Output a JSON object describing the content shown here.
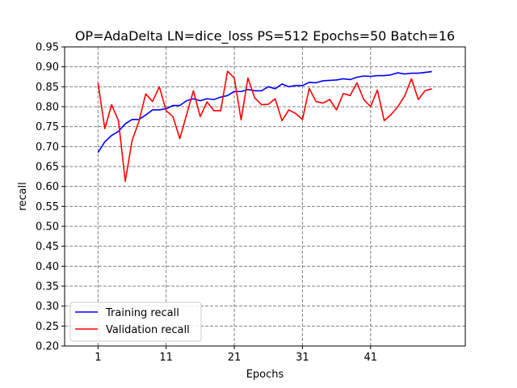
{
  "chart_data": {
    "type": "line",
    "title": "OP=AdaDelta LN=dice_loss PS=512 Epochs=50 Batch=16",
    "xlabel": "Epochs",
    "ylabel": "recall",
    "xlim": [
      -3.9,
      54.9
    ],
    "ylim": [
      0.2,
      0.95
    ],
    "xticks": [
      1,
      11,
      21,
      31,
      41
    ],
    "xtick_labels": [
      "1",
      "11",
      "21",
      "31",
      "41"
    ],
    "yticks": [
      0.2,
      0.25,
      0.3,
      0.35,
      0.4,
      0.45,
      0.5,
      0.55,
      0.6,
      0.65,
      0.7,
      0.75,
      0.8,
      0.85,
      0.9,
      0.95
    ],
    "ytick_labels": [
      "0.20",
      "0.25",
      "0.30",
      "0.35",
      "0.40",
      "0.45",
      "0.50",
      "0.55",
      "0.60",
      "0.65",
      "0.70",
      "0.75",
      "0.80",
      "0.85",
      "0.90",
      "0.95"
    ],
    "grid": true,
    "legend_position": "lower-left",
    "x": [
      1,
      2,
      3,
      4,
      5,
      6,
      7,
      8,
      9,
      10,
      11,
      12,
      13,
      14,
      15,
      16,
      17,
      18,
      19,
      20,
      21,
      22,
      23,
      24,
      25,
      26,
      27,
      28,
      29,
      30,
      31,
      32,
      33,
      34,
      35,
      36,
      37,
      38,
      39,
      40,
      41,
      42,
      43,
      44,
      45,
      46,
      47,
      48,
      49,
      50
    ],
    "series": [
      {
        "name": "Training recall",
        "color": "#0000ff",
        "values": [
          0.685,
          0.712,
          0.728,
          0.738,
          0.757,
          0.768,
          0.768,
          0.779,
          0.792,
          0.792,
          0.795,
          0.803,
          0.803,
          0.815,
          0.82,
          0.815,
          0.82,
          0.818,
          0.824,
          0.828,
          0.838,
          0.838,
          0.843,
          0.84,
          0.84,
          0.85,
          0.845,
          0.857,
          0.85,
          0.853,
          0.853,
          0.861,
          0.86,
          0.865,
          0.866,
          0.867,
          0.87,
          0.868,
          0.874,
          0.877,
          0.876,
          0.878,
          0.878,
          0.88,
          0.885,
          0.882,
          0.884,
          0.884,
          0.886,
          0.888
        ]
      },
      {
        "name": "Validation recall",
        "color": "#ff0000",
        "values": [
          0.86,
          0.745,
          0.805,
          0.765,
          0.613,
          0.715,
          0.763,
          0.832,
          0.813,
          0.85,
          0.79,
          0.775,
          0.72,
          0.78,
          0.84,
          0.775,
          0.812,
          0.79,
          0.79,
          0.889,
          0.872,
          0.767,
          0.872,
          0.822,
          0.805,
          0.806,
          0.82,
          0.765,
          0.792,
          0.783,
          0.768,
          0.846,
          0.813,
          0.809,
          0.818,
          0.792,
          0.833,
          0.828,
          0.86,
          0.818,
          0.8,
          0.842,
          0.765,
          0.78,
          0.8,
          0.827,
          0.87,
          0.818,
          0.84,
          0.845
        ]
      }
    ]
  }
}
